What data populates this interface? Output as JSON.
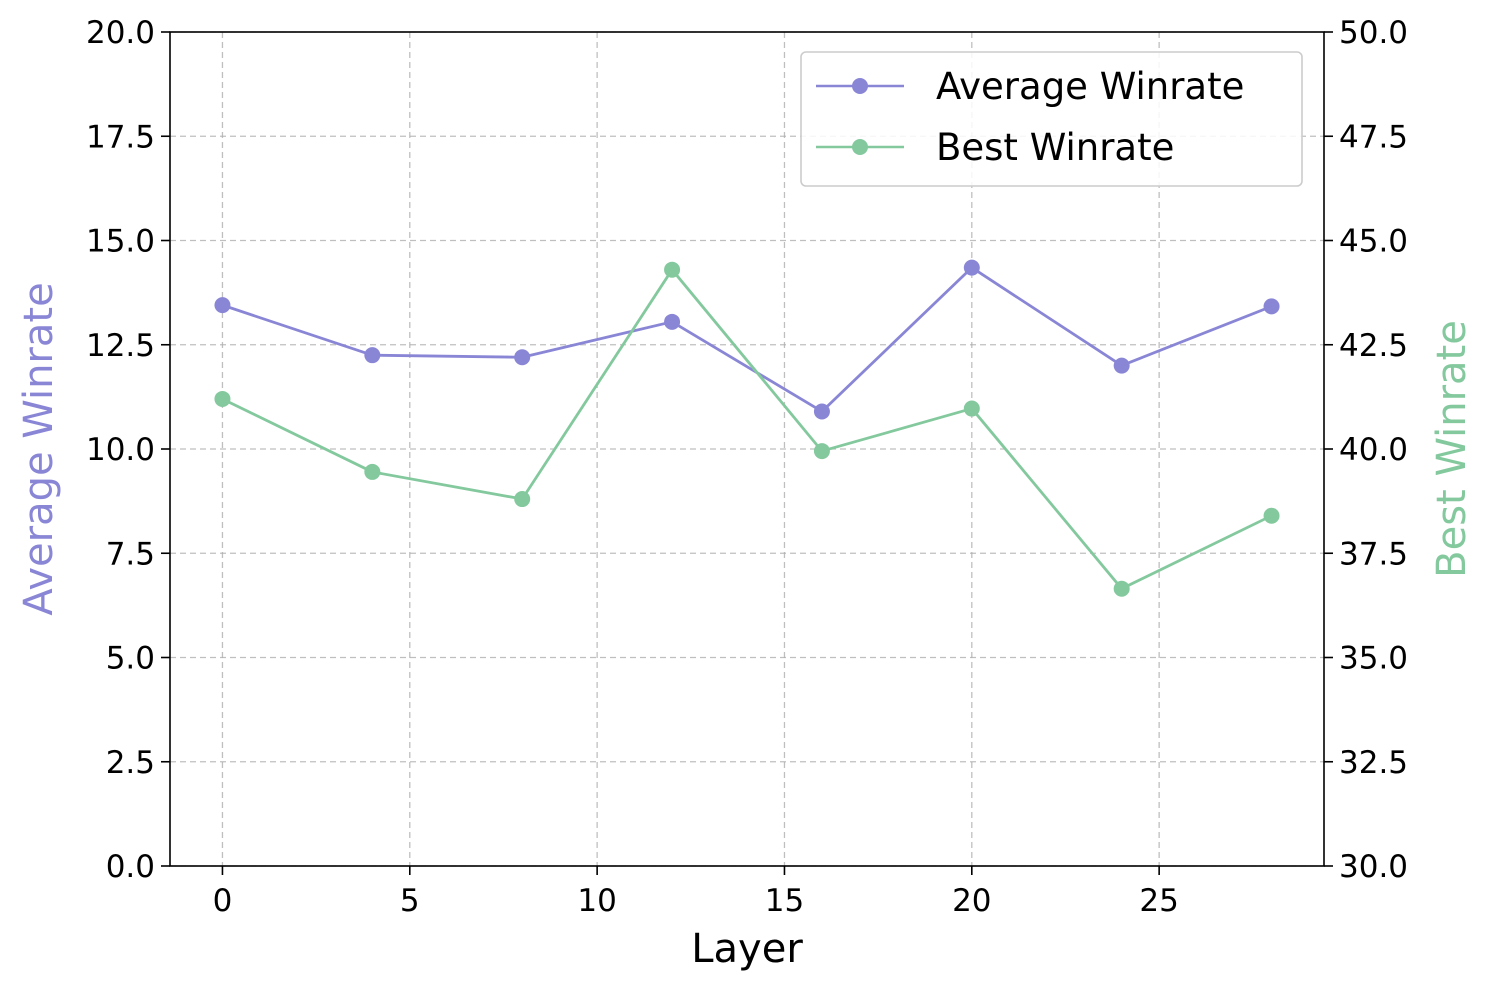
{
  "chart_data": {
    "type": "line",
    "title": "",
    "xlabel": "Layer",
    "ylabel_left": "Average Winrate",
    "ylabel_right": "Best Winrate",
    "xlim": [
      -1.4,
      29.4
    ],
    "ylim_left": [
      0,
      20
    ],
    "ylim_right": [
      30,
      50
    ],
    "x_ticks": [
      0,
      5,
      10,
      15,
      20,
      25
    ],
    "y_left_ticks": [
      0.0,
      2.5,
      5.0,
      7.5,
      10.0,
      12.5,
      15.0,
      17.5,
      20.0
    ],
    "y_right_ticks": [
      30.0,
      32.5,
      35.0,
      37.5,
      40.0,
      42.5,
      45.0,
      47.5,
      50.0
    ],
    "x_tick_labels": [
      "0",
      "5",
      "10",
      "15",
      "20",
      "25"
    ],
    "y_left_tick_labels": [
      "0.0",
      "2.5",
      "5.0",
      "7.5",
      "10.0",
      "12.5",
      "15.0",
      "17.5",
      "20.0"
    ],
    "y_right_tick_labels": [
      "30.0",
      "32.5",
      "35.0",
      "37.5",
      "40.0",
      "42.5",
      "45.0",
      "47.5",
      "50.0"
    ],
    "grid": true,
    "legend_position": "top-right",
    "series": [
      {
        "name": "Average Winrate",
        "axis": "left",
        "color": "#8a86d6",
        "x": [
          0,
          4,
          8,
          12,
          16,
          20,
          24,
          28
        ],
        "values": [
          13.45,
          12.25,
          12.2,
          13.05,
          10.9,
          14.35,
          12.0,
          13.42
        ]
      },
      {
        "name": "Best Winrate",
        "axis": "right",
        "color": "#84c99e",
        "x": [
          0,
          4,
          8,
          12,
          16,
          20,
          24,
          28
        ],
        "values": [
          41.2,
          39.45,
          38.8,
          44.3,
          39.95,
          40.97,
          36.65,
          38.4
        ]
      }
    ]
  }
}
